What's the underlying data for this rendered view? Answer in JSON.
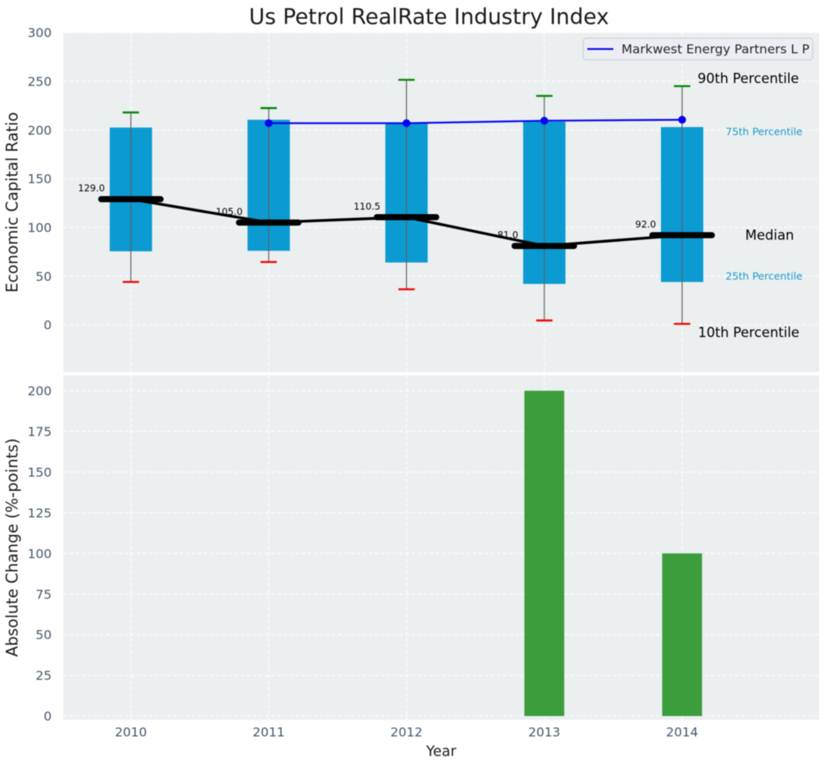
{
  "figure": {
    "title": "Us Petrol RealRate Industry Index"
  },
  "colors": {
    "figure_bg": "#ffffff",
    "axes_bg": "#ebeff0",
    "grid": "#ffffff",
    "tick_label": "#42546c",
    "dark_text": "#1a1a1a",
    "bar_blue": "#0c9ad2",
    "cyan_text": "#1b9acb",
    "bar_green": "#3c9d3c",
    "cap_green": "#058805",
    "cap_red": "#f30505",
    "whisker_gray": "#5f5f5f",
    "company_blue": "#0404f5",
    "median_black": "#000000",
    "legend_bg": "#edeef4",
    "legend_border": "#c8c9cf"
  },
  "chart_data": [
    {
      "type": "box-percentile",
      "title": "Us Petrol RealRate Industry Index",
      "ylabel": "Economic Capital Ratio",
      "categories": [
        "2010",
        "2011",
        "2012",
        "2013",
        "2014"
      ],
      "yticks": [
        0,
        50,
        100,
        150,
        200,
        250,
        300
      ],
      "ylim": [
        -48.5,
        300
      ],
      "grid": true,
      "legend": {
        "label": "Markwest Energy Partners L P",
        "position": "upper right"
      },
      "series": [
        {
          "name": "90th Percentile",
          "values": [
            218,
            222.5,
            251.5,
            235,
            245
          ]
        },
        {
          "name": "75th Percentile",
          "values": [
            202.5,
            210.5,
            207,
            208.5,
            203
          ]
        },
        {
          "name": "Median",
          "values": [
            129.0,
            105.0,
            110.5,
            81.0,
            92.0
          ]
        },
        {
          "name": "25th Percentile",
          "values": [
            75.5,
            76,
            64,
            42,
            44
          ]
        },
        {
          "name": "10th Percentile",
          "values": [
            44,
            64.5,
            36.5,
            4.5,
            1
          ]
        }
      ],
      "median_labels": [
        "129.0",
        "105.0",
        "110.5",
        "81.0",
        "92.0"
      ],
      "company_line": {
        "name": "Markwest Energy Partners L P",
        "x": [
          "2011",
          "2012",
          "2013",
          "2014"
        ],
        "values": [
          207,
          207,
          209.5,
          210.5
        ]
      },
      "annotations": [
        {
          "text": "90th Percentile",
          "style": "large"
        },
        {
          "text": "75th Percentile",
          "style": "small-cyan"
        },
        {
          "text": "Median",
          "style": "large"
        },
        {
          "text": "25th Percentile",
          "style": "small-cyan"
        },
        {
          "text": "10th Percentile",
          "style": "large"
        }
      ]
    },
    {
      "type": "bar",
      "ylabel": "Absolute Change (%-points)",
      "xlabel": "Year",
      "categories": [
        "2010",
        "2011",
        "2012",
        "2013",
        "2014"
      ],
      "values": [
        0,
        0,
        0,
        200,
        100
      ],
      "yticks": [
        0,
        25,
        50,
        75,
        100,
        125,
        150,
        175,
        200
      ],
      "ylim": [
        -2.3,
        209.3
      ],
      "grid": true
    }
  ]
}
